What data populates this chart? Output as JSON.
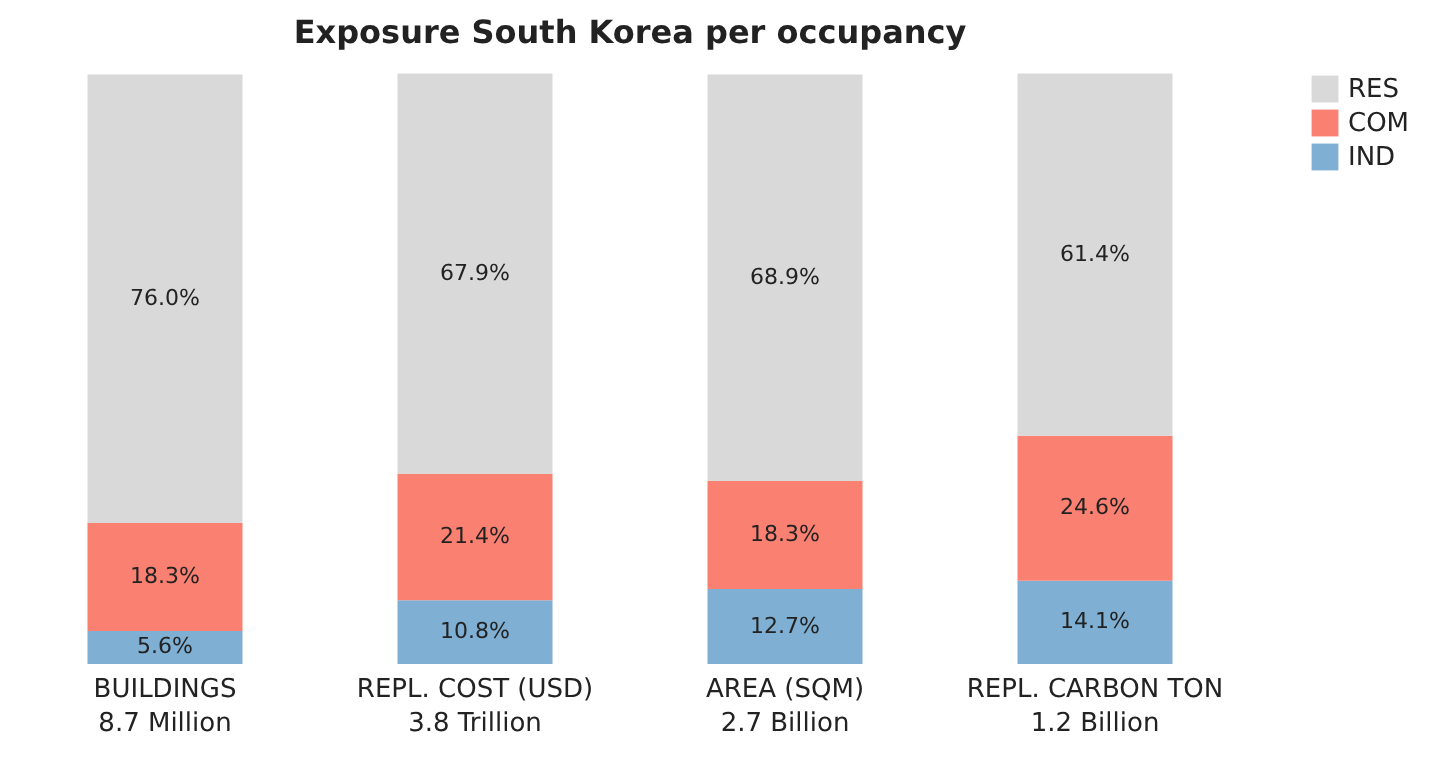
{
  "chart_data": {
    "type": "bar",
    "title": "Exposure South Korea per occupancy",
    "categories": [
      "BUILDINGS\n8.7 Million",
      "REPL. COST (USD)\n3.8 Trillion",
      "AREA (SQM)\n2.7 Billion",
      "REPL. CARBON TON\n1.2 Billion"
    ],
    "stacked": true,
    "ylim": [
      0,
      100
    ],
    "tick_labels": "x",
    "legend": "top right",
    "series": [
      {
        "name": "IND",
        "color": "#7fafd3",
        "values": [
          5.6,
          10.8,
          12.7,
          14.1
        ],
        "value_labels": [
          "5.6%",
          "10.8%",
          "12.7%",
          "14.1%"
        ]
      },
      {
        "name": "COM",
        "color": "#fa8072",
        "values": [
          18.3,
          21.4,
          18.3,
          24.6
        ],
        "value_labels": [
          "18.3%",
          "21.4%",
          "18.3%",
          "24.6%"
        ]
      },
      {
        "name": "RES",
        "color": "#d9d9d9",
        "values": [
          76.0,
          67.9,
          68.9,
          61.4
        ],
        "value_labels": [
          "76.0%",
          "67.9%",
          "68.9%",
          "61.4%"
        ]
      }
    ]
  }
}
